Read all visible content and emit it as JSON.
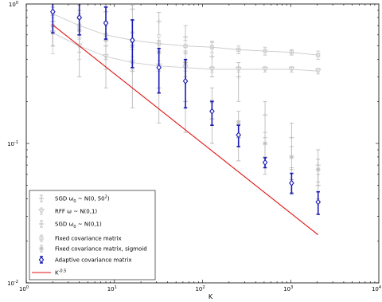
{
  "chart_data": {
    "type": "scatter",
    "title": "",
    "xlabel": "K",
    "ylabel": "",
    "xscale": "log",
    "yscale": "log",
    "xlim": [
      1,
      10000
    ],
    "ylim": [
      0.01,
      1
    ],
    "grid": false,
    "legend_position": "bottom-left",
    "x_ticks": [
      {
        "base": "10",
        "exp": "0",
        "value": 1
      },
      {
        "base": "10",
        "exp": "1",
        "value": 10
      },
      {
        "base": "10",
        "exp": "2",
        "value": 100
      },
      {
        "base": "10",
        "exp": "3",
        "value": 1000
      },
      {
        "base": "10",
        "exp": "4",
        "value": 10000
      }
    ],
    "y_ticks": [
      {
        "base": "10",
        "exp": "-2",
        "value": 0.01
      },
      {
        "base": "10",
        "exp": "-1",
        "value": 0.1
      },
      {
        "base": "10",
        "exp": "0",
        "value": 1
      }
    ],
    "series": [
      {
        "name": "SGD ω₀ ~ N(0, 50²)",
        "legend": {
          "pre": "SGD ω",
          "sub": "0",
          "mid": " ~ N(0, 50",
          "sup": "2",
          "post": ")"
        },
        "color": "#bbbbbb",
        "marker": "plus",
        "line": false,
        "x": [
          2,
          4,
          8,
          16,
          32,
          64,
          128,
          256,
          512,
          1024,
          2048
        ],
        "y": [
          0.75,
          0.78,
          0.88,
          0.92,
          0.75,
          0.58,
          0.42,
          0.3,
          0.16,
          0.11,
          0.07
        ],
        "err_low": [
          0.25,
          0.22,
          0.18,
          0.16,
          0.15,
          0.14,
          0.12,
          0.1,
          0.05,
          0.03,
          0.02
        ],
        "err_high": [
          0.2,
          0.2,
          0.08,
          0.06,
          0.12,
          0.12,
          0.12,
          0.08,
          0.04,
          0.03,
          0.02
        ]
      },
      {
        "name": "RFF ω ~ N(0,1)",
        "legend": {
          "pre": "RFF ω ~ N(0,1)",
          "sub": "",
          "mid": "",
          "sup": "",
          "post": ""
        },
        "color": "#cccccc",
        "marker": "triangle",
        "line": true,
        "x": [
          2,
          4,
          8,
          16,
          32,
          64,
          128,
          256,
          512,
          1024,
          2048
        ],
        "y": [
          0.62,
          0.5,
          0.42,
          0.38,
          0.36,
          0.35,
          0.34,
          0.34,
          0.34,
          0.34,
          0.33
        ],
        "err_low": [
          0.18,
          0.1,
          0.08,
          0.04,
          0.03,
          0.02,
          0.015,
          0.015,
          0.015,
          0.015,
          0.015
        ],
        "err_high": [
          0.18,
          0.1,
          0.08,
          0.04,
          0.03,
          0.02,
          0.015,
          0.015,
          0.015,
          0.015,
          0.015
        ]
      },
      {
        "name": "SGD ω₀ ~ N(0,1)",
        "legend": {
          "pre": "SGD ω",
          "sub": "0",
          "mid": " ~ N(0,1)",
          "sup": "",
          "post": ""
        },
        "color": "#bbbbbb",
        "marker": "plus",
        "line": false,
        "x": [
          2,
          4,
          8,
          16,
          32,
          64,
          128,
          256,
          512,
          1024,
          2048
        ],
        "y": [
          0.75,
          0.6,
          0.5,
          0.33,
          0.25,
          0.2,
          0.15,
          0.11,
          0.08,
          0.055,
          0.05
        ],
        "err_low": [
          0.25,
          0.3,
          0.25,
          0.15,
          0.11,
          0.08,
          0.05,
          0.035,
          0.02,
          0.012,
          0.01
        ],
        "err_high": [
          0.2,
          0.3,
          0.25,
          0.2,
          0.12,
          0.08,
          0.05,
          0.035,
          0.02,
          0.012,
          0.01
        ]
      },
      {
        "name": "Fixed covariance matrix",
        "legend": {
          "pre": "Fixed covariance matrix",
          "sub": "",
          "mid": "",
          "sup": "",
          "post": ""
        },
        "color": "#c8c8c8",
        "marker": "square",
        "line": true,
        "x": [
          2,
          4,
          8,
          16,
          32,
          64,
          128,
          256,
          512,
          1024,
          2048
        ],
        "y": [
          0.85,
          0.7,
          0.6,
          0.55,
          0.52,
          0.5,
          0.49,
          0.47,
          0.46,
          0.45,
          0.43
        ],
        "err_low": [
          0.15,
          0.12,
          0.1,
          0.08,
          0.06,
          0.05,
          0.04,
          0.03,
          0.03,
          0.02,
          0.03
        ],
        "err_high": [
          0.15,
          0.12,
          0.1,
          0.08,
          0.06,
          0.05,
          0.04,
          0.03,
          0.03,
          0.02,
          0.03
        ]
      },
      {
        "name": "Fixed covariance matrix, sigmoid",
        "legend": {
          "pre": "Fixed covariance matrix, sigmoid",
          "sub": "",
          "mid": "",
          "sup": "",
          "post": ""
        },
        "color": "#bbbbbb",
        "marker": "star",
        "line": false,
        "x": [
          2,
          4,
          8,
          16,
          32,
          64,
          128,
          256,
          512,
          1024,
          2048
        ],
        "y": [
          0.7,
          0.65,
          0.55,
          0.5,
          0.45,
          0.38,
          0.2,
          0.14,
          0.1,
          0.08,
          0.065
        ],
        "err_low": [
          0.2,
          0.2,
          0.15,
          0.12,
          0.1,
          0.08,
          0.05,
          0.03,
          0.02,
          0.015,
          0.012
        ],
        "err_high": [
          0.2,
          0.2,
          0.15,
          0.12,
          0.1,
          0.08,
          0.05,
          0.03,
          0.02,
          0.015,
          0.012
        ]
      },
      {
        "name": "Adaptive covariance matrix",
        "legend": {
          "pre": "Adaptive covariance matrix",
          "sub": "",
          "mid": "",
          "sup": "",
          "post": ""
        },
        "color": "#1a1ab4",
        "marker": "diamond",
        "line": false,
        "x": [
          2,
          4,
          8,
          16,
          32,
          64,
          128,
          256,
          512,
          1024,
          2048
        ],
        "y": [
          0.88,
          0.8,
          0.73,
          0.55,
          0.35,
          0.28,
          0.17,
          0.115,
          0.073,
          0.052,
          0.038
        ],
        "err_low": [
          0.26,
          0.2,
          0.17,
          0.2,
          0.12,
          0.1,
          0.035,
          0.02,
          0.006,
          0.008,
          0.007
        ],
        "err_high": [
          0.22,
          0.22,
          0.22,
          0.22,
          0.13,
          0.12,
          0.03,
          0.02,
          0.006,
          0.009,
          0.007
        ]
      },
      {
        "name": "K^-0.5",
        "legend": {
          "pre": "K",
          "sub": "",
          "mid": "",
          "sup": "-0.5",
          "post": ""
        },
        "color": "#e01010",
        "marker": "none",
        "line": true,
        "x": [
          2,
          2048
        ],
        "y": [
          0.707,
          0.0221
        ],
        "err_low": [],
        "err_high": []
      }
    ]
  }
}
